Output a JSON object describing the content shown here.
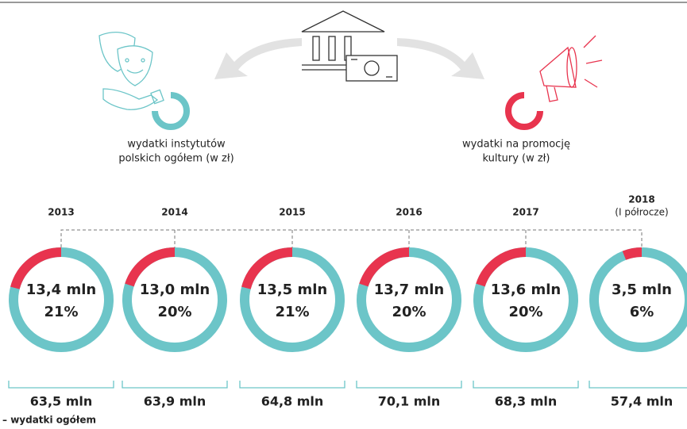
{
  "legend": {
    "institutes": [
      "wydatki instytutów",
      "polskich ogółem (w zł)"
    ],
    "promotion": [
      "wydatki na promocję",
      "kultury (w zł)"
    ],
    "total_note": "– wydatki ogółem"
  },
  "chart_data": {
    "type": "donut",
    "categories": [
      "2013",
      "2014",
      "2015",
      "2016",
      "2017",
      "2018"
    ],
    "last_category_note": "(I półrocze)",
    "values": [
      21,
      20,
      21,
      20,
      20,
      6
    ],
    "value_labels": [
      "21%",
      "20%",
      "21%",
      "20%",
      "20%",
      "6%"
    ],
    "promotion_labels": [
      "13,4 mln",
      "13,0 mln",
      "13,5 mln",
      "13,7 mln",
      "13,6 mln",
      "3,5 mln"
    ],
    "total_labels": [
      "63,5 mln",
      "63,9 mln",
      "64,8 mln",
      "70,1 mln",
      "68,3 mln",
      "57,4 mln"
    ],
    "ylim": [
      0,
      100
    ],
    "colors": {
      "share": "#e8344e",
      "rest": "#6cc5c8"
    }
  }
}
